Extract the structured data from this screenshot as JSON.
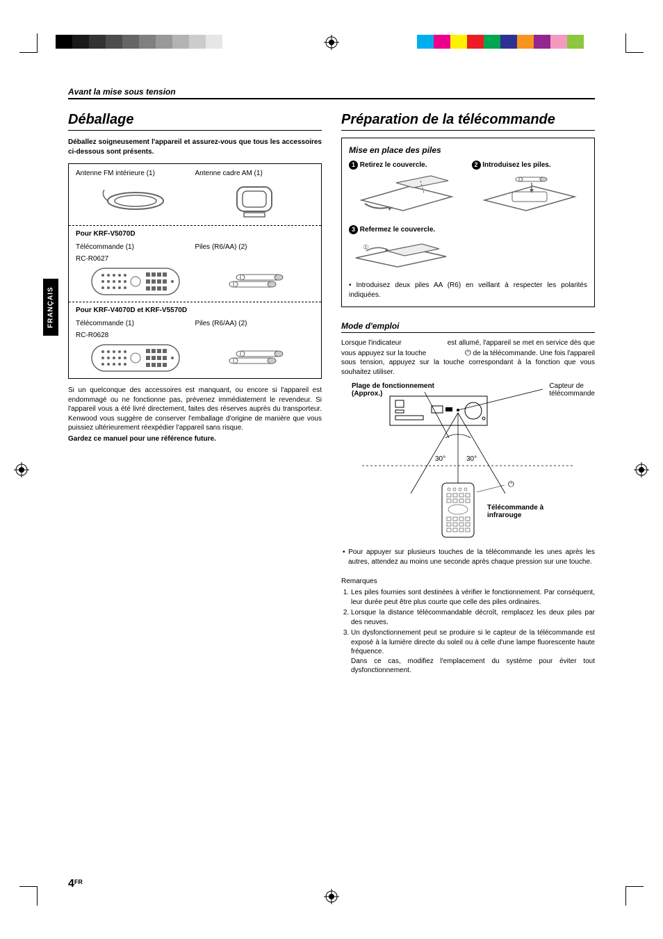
{
  "printer_marks": {
    "gray_bar": [
      "#000000",
      "#1a1a1a",
      "#333333",
      "#4d4d4d",
      "#666666",
      "#808080",
      "#999999",
      "#b3b3b3",
      "#cccccc",
      "#e6e6e6"
    ],
    "color_bar": [
      "#00aeef",
      "#ec008c",
      "#fff200",
      "#ed1c24",
      "#00a651",
      "#2e3192",
      "#f7941d",
      "#92278f",
      "#f49ac1",
      "#8dc63f"
    ]
  },
  "section_label": "Avant la mise sous tension",
  "language_tab": "FRANÇAIS",
  "page_footer": {
    "number": "4",
    "suffix": "FR"
  },
  "left": {
    "heading": "Déballage",
    "intro": "Déballez soigneusement l'appareil et assurez-vous que tous les accessoires ci-dessous sont présents.",
    "top_row": {
      "fm": "Antenne FM intérieure (1)",
      "am": "Antenne cadre AM (1)"
    },
    "group1": {
      "heading": "Pour KRF-V5070D",
      "remote": "Télécommande (1)",
      "remote_model": "RC-R0627",
      "batteries": "Piles (R6/AA) (2)"
    },
    "group2": {
      "heading": "Pour KRF-V4070D et KRF-V5570D",
      "remote": "Télécommande (1)",
      "remote_model": "RC-R0628",
      "batteries": "Piles (R6/AA) (2)"
    },
    "para": "Si un quelconque des accessoires est manquant, ou encore si l'appareil est endommagé ou ne fonctionne pas, prévenez immédiatement le revendeur. Si l'appareil vous a été livré directement, faites des réserves auprès du transporteur. Kenwood vous suggère de conserver l'emballage d'origine de manière que vous puissiez ultérieurement réexpédier l'appareil sans risque.",
    "para_bold": "Gardez ce manuel pour une référence future."
  },
  "right": {
    "heading": "Préparation de la télécommande",
    "battery": {
      "subheading": "Mise en place des piles",
      "step1": "Retirez le couvercle.",
      "step2": "Introduisez les piles.",
      "step3": "Refermez le couvercle.",
      "note": "Introduisez deux piles AA (R6) en veillant à respecter les polarités indiquées."
    },
    "operation": {
      "subheading": "Mode d'emploi",
      "text_part1": "Lorsque l'indicateur",
      "text_part2": "est allumé, l'appareil se met en service dès que vous appuyez sur la touche",
      "text_part3": "de la télécommande. Une fois l'appareil sous tension, appuyez sur la touche correspondant à la fonction que vous souhaitez utiliser.",
      "diagram": {
        "range_label_1": "Plage de fonctionnement",
        "range_label_2": "(Approx.)",
        "sensor_label_1": "Capteur de",
        "sensor_label_2": "télécommande",
        "angle_left": "30°",
        "angle_right": "30°",
        "remote_label_1": "Télécommande à",
        "remote_label_2": "infrarouge"
      },
      "bullet": "Pour appuyer sur plusieurs touches de la télécommande les unes après les autres, attendez au moins une seconde après chaque pression sur une touche.",
      "remarks_heading": "Remarques",
      "remarks": [
        "Les piles fournies sont destinées à vérifier le fonctionnement. Par conséquent, leur durée peut être plus courte que celle des piles ordinaires.",
        "Lorsque la distance télécommandable décroît, remplacez les deux piles par des neuves.",
        "Un dysfonctionnement peut se produire si le capteur de la télécommande est exposé à la lumière directe du soleil ou à celle d'une lampe fluorescente haute fréquence.\nDans ce cas, modifiez l'emplacement du système pour éviter tout dysfonctionnement."
      ]
    }
  }
}
